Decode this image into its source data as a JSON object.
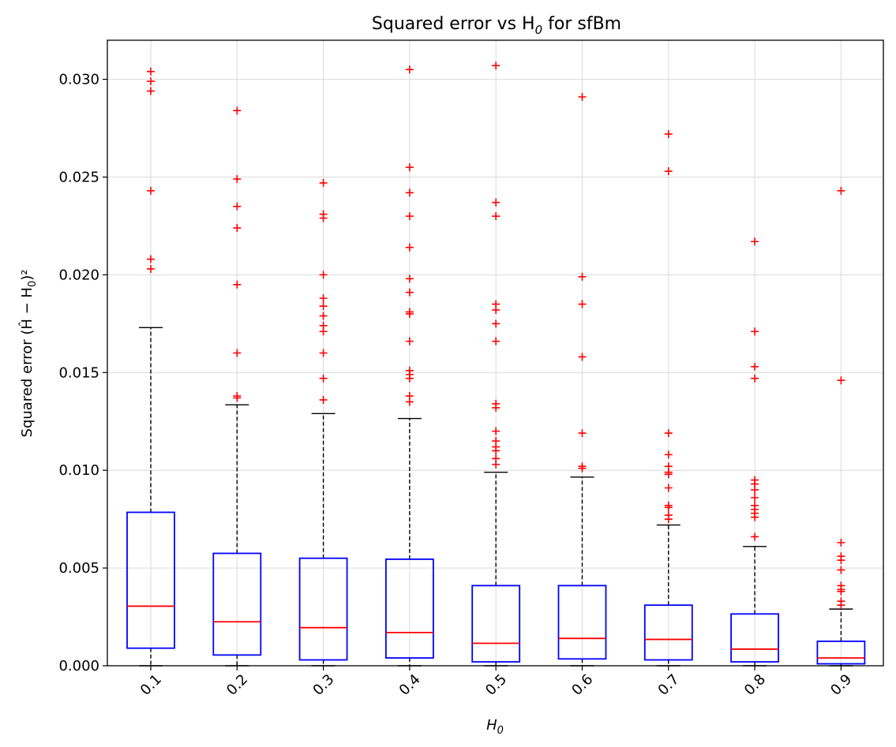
{
  "chart_data": {
    "type": "box",
    "title": "Squared error vs H",
    "title_subscript": "0",
    "title_suffix": " for sfBm",
    "xlabel": "H",
    "xlabel_subscript": "0",
    "ylabel": "Squared error (Ĥ − H",
    "ylabel_subscript": "0",
    "ylabel_suffix": ")²",
    "ylim": [
      0,
      0.032
    ],
    "yticks": [
      "0.000",
      "0.005",
      "0.010",
      "0.015",
      "0.020",
      "0.025",
      "0.030"
    ],
    "ytick_values": [
      0,
      0.005,
      0.01,
      0.015,
      0.02,
      0.025,
      0.03
    ],
    "grid": true,
    "colors": {
      "box": "#0000ff",
      "median": "#ff0000",
      "whisker": "#000000",
      "flier": "#ff0000",
      "grid": "#d9d9d9"
    },
    "categories": [
      "0.1",
      "0.2",
      "0.3",
      "0.4",
      "0.5",
      "0.6",
      "0.7",
      "0.8",
      "0.9"
    ],
    "boxes": [
      {
        "whislo": 0.0,
        "q1": 0.0009,
        "med": 0.00305,
        "q3": 0.00785,
        "whishi": 0.0173,
        "fliers": [
          0.0304,
          0.0299,
          0.0294,
          0.0243,
          0.0208,
          0.0203
        ]
      },
      {
        "whislo": 0.0,
        "q1": 0.00055,
        "med": 0.00225,
        "q3": 0.00575,
        "whishi": 0.01335,
        "fliers": [
          0.0284,
          0.0249,
          0.0235,
          0.0224,
          0.0195,
          0.016,
          0.0138,
          0.0137
        ]
      },
      {
        "whislo": 0.0,
        "q1": 0.0003,
        "med": 0.00195,
        "q3": 0.0055,
        "whishi": 0.0129,
        "fliers": [
          0.0247,
          0.0231,
          0.0229,
          0.02,
          0.0188,
          0.0184,
          0.0179,
          0.0174,
          0.0171,
          0.016,
          0.0147,
          0.0136
        ]
      },
      {
        "whislo": 0.0,
        "q1": 0.0004,
        "med": 0.0017,
        "q3": 0.00545,
        "whishi": 0.01265,
        "fliers": [
          0.0305,
          0.0255,
          0.0242,
          0.023,
          0.0214,
          0.0198,
          0.0191,
          0.0181,
          0.018,
          0.0166,
          0.0151,
          0.0149,
          0.0147,
          0.0138,
          0.0135
        ]
      },
      {
        "whislo": 0.0,
        "q1": 0.0002,
        "med": 0.00115,
        "q3": 0.0041,
        "whishi": 0.0099,
        "fliers": [
          0.0307,
          0.0237,
          0.023,
          0.0185,
          0.0182,
          0.0175,
          0.0166,
          0.0134,
          0.0132,
          0.012,
          0.0115,
          0.0112,
          0.011,
          0.0106,
          0.0103
        ]
      },
      {
        "whislo": 0.0,
        "q1": 0.00035,
        "med": 0.0014,
        "q3": 0.0041,
        "whishi": 0.00965,
        "fliers": [
          0.0291,
          0.0199,
          0.0185,
          0.0158,
          0.0119,
          0.0102,
          0.0101
        ]
      },
      {
        "whislo": 0.0,
        "q1": 0.0003,
        "med": 0.00135,
        "q3": 0.0031,
        "whishi": 0.0072,
        "fliers": [
          0.0272,
          0.0253,
          0.0119,
          0.0108,
          0.0102,
          0.0099,
          0.0098,
          0.0091,
          0.0082,
          0.0081,
          0.0077,
          0.0075
        ]
      },
      {
        "whislo": 0.0,
        "q1": 0.0002,
        "med": 0.00085,
        "q3": 0.00265,
        "whishi": 0.0061,
        "fliers": [
          0.0217,
          0.0171,
          0.0153,
          0.0147,
          0.0095,
          0.0093,
          0.009,
          0.0086,
          0.0082,
          0.008,
          0.0078,
          0.0076,
          0.0066
        ]
      },
      {
        "whislo": 0.0,
        "q1": 0.0001,
        "med": 0.0004,
        "q3": 0.00125,
        "whishi": 0.0029,
        "fliers": [
          0.0243,
          0.0146,
          0.0063,
          0.0056,
          0.0054,
          0.0049,
          0.0041,
          0.0039,
          0.0038,
          0.0033,
          0.0031
        ]
      }
    ]
  }
}
